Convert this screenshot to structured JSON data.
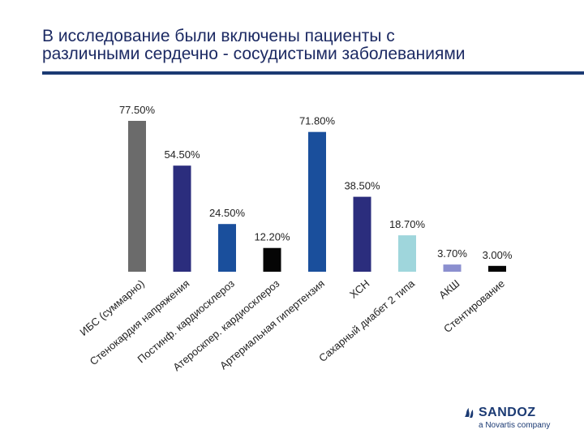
{
  "slide": {
    "title_line1": "В исследование были включены пациенты с",
    "title_line2": "различными сердечно - сосудистыми заболеваниями"
  },
  "logo": {
    "brand": "SANDOZ",
    "tagline": "a Novartis company"
  },
  "colors": {
    "title": "#1c2a63",
    "rule": "#1b3a73"
  },
  "chart_data": {
    "type": "bar",
    "title": "",
    "xlabel": "",
    "ylabel": "",
    "ylim": [
      0,
      80
    ],
    "grid": false,
    "categories": [
      "ИБС (суммарно)",
      "Стенокардия напряжения",
      "Постинф. кардиосклероз",
      "Атероскпер. кардиосклероз",
      "Артериальная гипертензия",
      "ХСН",
      "Сахарный диабет 2 типа",
      "АКШ",
      "Стентирование"
    ],
    "values": [
      77.5,
      54.5,
      24.5,
      12.2,
      71.8,
      38.5,
      18.7,
      3.7,
      3.0
    ],
    "data_labels": [
      "77.50%",
      "54.50%",
      "24.50%",
      "12.20%",
      "71.80%",
      "38.50%",
      "18.70%",
      "3.70%",
      "3.00%"
    ],
    "colors": [
      "#6b6b6b",
      "#2b2d7d",
      "#1a4f9c",
      "#050505",
      "#1a4f9c",
      "#2b2d7d",
      "#9fd6dc",
      "#8b8fcf",
      "#050505"
    ]
  }
}
